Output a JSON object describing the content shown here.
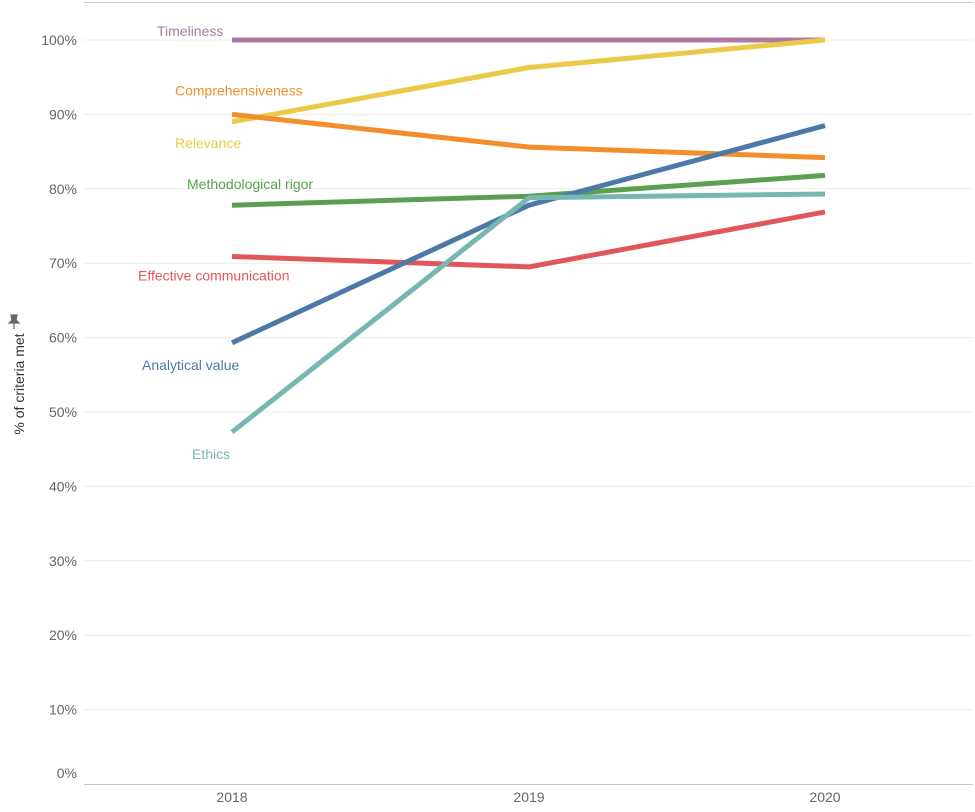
{
  "chart_data": {
    "type": "line",
    "x": [
      "2018",
      "2019",
      "2020"
    ],
    "ylabel": "% of criteria met",
    "ylabel_icon": "pin-icon",
    "ylim": [
      0,
      100
    ],
    "yticks": [
      "0%",
      "10%",
      "20%",
      "30%",
      "40%",
      "50%",
      "60%",
      "70%",
      "80%",
      "90%",
      "100%"
    ],
    "grid": true,
    "series": [
      {
        "name": "Timeliness",
        "color": "#b07aa1",
        "values": [
          100,
          100,
          100
        ]
      },
      {
        "name": "Relevance",
        "color": "#edc948",
        "values": [
          89,
          96.3,
          100
        ]
      },
      {
        "name": "Comprehensiveness",
        "color": "#f28e2b",
        "values": [
          90,
          85.6,
          84.2
        ]
      },
      {
        "name": "Methodological rigor",
        "color": "#59a14f",
        "values": [
          77.8,
          79,
          81.8
        ]
      },
      {
        "name": "Effective communication",
        "color": "#e15759",
        "values": [
          70.9,
          69.5,
          76.9
        ]
      },
      {
        "name": "Analytical value",
        "color": "#4e79a7",
        "values": [
          59.3,
          77.8,
          88.5
        ]
      },
      {
        "name": "Ethics",
        "color": "#76b7b2",
        "values": [
          47.3,
          78.8,
          79.3
        ]
      }
    ]
  }
}
